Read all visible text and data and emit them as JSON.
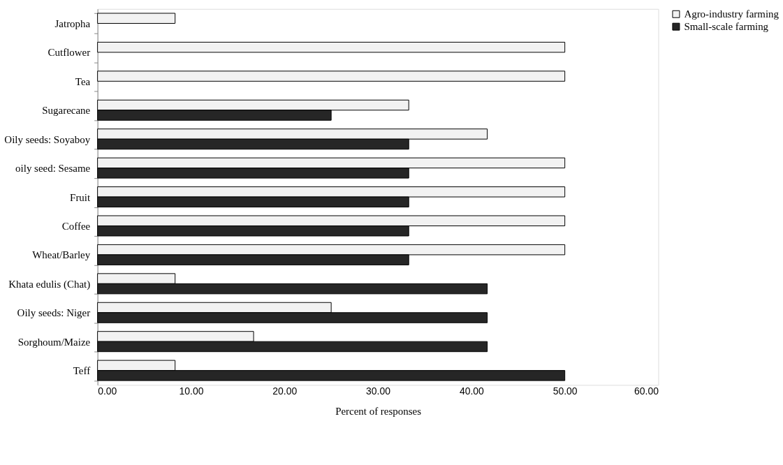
{
  "chart_data": {
    "type": "bar",
    "orientation": "horizontal",
    "xlabel": "Percent of responses",
    "categories": [
      "Jatropha",
      "Cutflower",
      "Tea",
      "Sugarecane",
      "Oily seeds: Soyaboy",
      "oily seed: Sesame",
      "Fruit",
      "Coffee",
      "Wheat/Barley",
      "Khata edulis (Chat)",
      "Oily seeds: Niger",
      "Sorghoum/Maize",
      "Teff"
    ],
    "series": [
      {
        "name": "Agro-industry farming",
        "color": "#f2f2f2",
        "values": [
          8.3,
          50,
          50,
          33.3,
          41.7,
          50,
          50,
          50,
          50,
          8.3,
          25,
          16.7,
          8.3
        ]
      },
      {
        "name": "Small-scale farming",
        "color": "#262626",
        "values": [
          null,
          null,
          null,
          25,
          33.3,
          33.3,
          33.3,
          33.3,
          33.3,
          41.7,
          41.7,
          41.7,
          50
        ]
      }
    ],
    "xlim": [
      0,
      60
    ],
    "xticks": [
      {
        "value": 0,
        "label": "0.00"
      },
      {
        "value": 10,
        "label": "10.00"
      },
      {
        "value": 20,
        "label": "20.00"
      },
      {
        "value": 30,
        "label": "30.00"
      },
      {
        "value": 40,
        "label": "40.00"
      },
      {
        "value": 50,
        "label": "50.00"
      },
      {
        "value": 60,
        "label": "60.00"
      }
    ],
    "grid": false,
    "legend": "right"
  }
}
